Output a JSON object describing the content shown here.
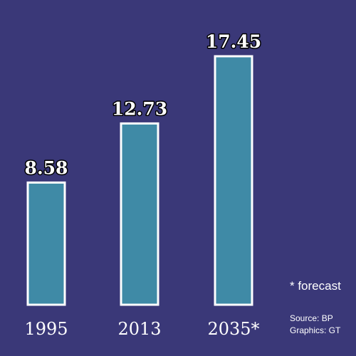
{
  "chart_data": {
    "type": "bar",
    "categories": [
      "1995",
      "2013",
      "2035*"
    ],
    "values": [
      8.58,
      12.73,
      17.45
    ],
    "value_labels": [
      "8.58",
      "12.73",
      "17.45"
    ],
    "ylim": [
      0,
      20
    ],
    "grid": false,
    "colors": {
      "background": "#3a3878",
      "bar_fill": "#3f8aa6",
      "bar_outline": "#ffffff",
      "text": "#ffffff"
    }
  },
  "notes": {
    "forecast": "* forecast",
    "source": "Source: BP",
    "graphics": "Graphics: GT"
  }
}
